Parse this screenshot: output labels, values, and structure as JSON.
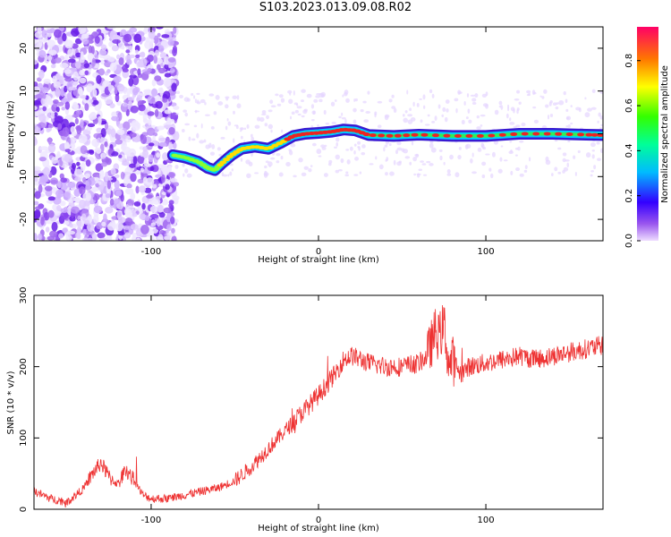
{
  "title": "S103.2023.013.09.08.R02",
  "chart_data": [
    {
      "type": "heatmap",
      "xlabel": "Height of straight line (km)",
      "ylabel": "Frequency (Hz)",
      "xlim": [
        -170,
        170
      ],
      "ylim": [
        -25,
        25
      ],
      "xticks": [
        -100,
        0,
        100
      ],
      "yticks": [
        -20,
        -10,
        0,
        10,
        20
      ],
      "colorbar": {
        "label": "Normalized spectral amplitude",
        "range": [
          0,
          0.95
        ],
        "ticks": [
          0.0,
          0.2,
          0.4,
          0.6,
          0.8
        ]
      },
      "noise_region_x": [
        -170,
        -85
      ],
      "ridge": {
        "x": [
          -87,
          -80,
          -72,
          -66,
          -62,
          -58,
          -52,
          -46,
          -38,
          -30,
          -22,
          -15,
          -8,
          0,
          8,
          15,
          22,
          30,
          45,
          60,
          80,
          100,
          120,
          140,
          160,
          170
        ],
        "y": [
          -5,
          -5.5,
          -6.5,
          -8,
          -8.5,
          -7,
          -5,
          -3.5,
          -3,
          -3.5,
          -2,
          -0.5,
          0,
          0.2,
          0.5,
          1,
          0.8,
          -0.3,
          -0.5,
          -0.2,
          -0.5,
          -0.5,
          0,
          0,
          -0.2,
          -0.3
        ]
      }
    },
    {
      "type": "line",
      "xlabel": "Height of straight line (km)",
      "ylabel": "SNR (10 * v/v)",
      "xlim": [
        -170,
        170
      ],
      "ylim": [
        0,
        300
      ],
      "xticks": [
        -100,
        0,
        100
      ],
      "yticks": [
        0,
        100,
        200,
        300
      ],
      "color": "#ee3333",
      "series": [
        {
          "x": [
            -170,
            -160,
            -150,
            -140,
            -135,
            -130,
            -125,
            -120,
            -115,
            -110,
            -105,
            -100,
            -90,
            -80,
            -70,
            -60,
            -50,
            -40,
            -30,
            -20,
            -10,
            0,
            10,
            15,
            20,
            25,
            30,
            40,
            50,
            60,
            65,
            70,
            72,
            75,
            78,
            80,
            85,
            90,
            100,
            110,
            120,
            130,
            140,
            150,
            160,
            170
          ],
          "y": [
            25,
            15,
            10,
            30,
            50,
            65,
            45,
            35,
            55,
            40,
            20,
            15,
            15,
            20,
            25,
            30,
            40,
            60,
            85,
            110,
            135,
            160,
            190,
            210,
            215,
            210,
            205,
            200,
            200,
            205,
            215,
            250,
            240,
            260,
            200,
            210,
            190,
            200,
            205,
            210,
            215,
            210,
            215,
            220,
            225,
            230
          ]
        }
      ]
    }
  ]
}
